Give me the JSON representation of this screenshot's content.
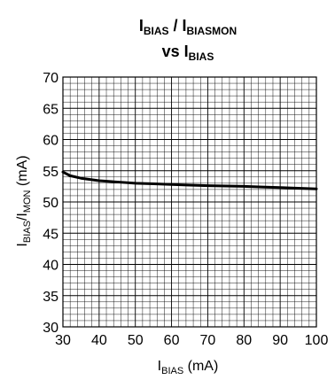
{
  "chart_data": {
    "type": "line",
    "title": {
      "line1_main": "I",
      "line1_sub": "BIAS",
      "line1_sep": " / I",
      "line1_sub2": "BIASMON",
      "line2_main": "vs I",
      "line2_sub": "BIAS"
    },
    "xlabel": {
      "main": "I",
      "sub": "BIAS",
      "suffix": " (mA)"
    },
    "ylabel": {
      "main": "I",
      "sub": "BIAS",
      "sep": "/I",
      "sub2": "MON",
      "suffix": " (mA)"
    },
    "xlim": [
      30,
      100
    ],
    "ylim": [
      30,
      70
    ],
    "x_ticks": [
      "30",
      "40",
      "50",
      "60",
      "70",
      "80",
      "90",
      "100"
    ],
    "y_ticks": [
      "30",
      "35",
      "40",
      "45",
      "50",
      "55",
      "60",
      "65",
      "70"
    ],
    "grid": true,
    "line_color": "#000000",
    "series": [
      {
        "x": [
          30,
          32,
          35,
          40,
          45,
          50,
          55,
          60,
          65,
          70,
          75,
          80,
          85,
          90,
          95,
          100
        ],
        "y": [
          54.8,
          54.2,
          53.8,
          53.4,
          53.2,
          53.0,
          52.9,
          52.8,
          52.7,
          52.6,
          52.55,
          52.5,
          52.4,
          52.3,
          52.2,
          52.1
        ]
      }
    ]
  }
}
